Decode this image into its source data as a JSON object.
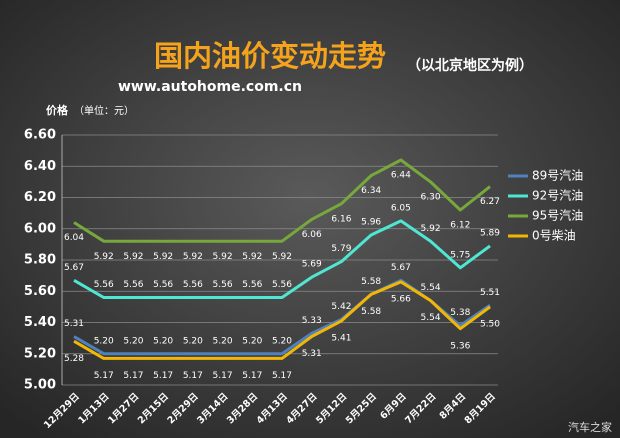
{
  "chart_data": {
    "type": "line",
    "title": "国内油价变动走势",
    "subtitle": "（以北京地区为例）",
    "source": "www.autohome.com.cn",
    "y_label": "价格",
    "y_unit": "（单位：元）",
    "watermark": "汽车之家",
    "categories": [
      "12月29日",
      "1月13日",
      "1月27日",
      "2月15日",
      "2月29日",
      "3月14日",
      "3月28日",
      "4月13日",
      "4月27日",
      "5月12日",
      "5月25日",
      "6月9日",
      "7月22日",
      "8月4日",
      "8月19日"
    ],
    "ylim": [
      5,
      6.6
    ],
    "yticks": [
      {
        "value": 5,
        "label": "5.00"
      },
      {
        "value": 5.2,
        "label": "5.20"
      },
      {
        "value": 5.4,
        "label": "5.40"
      },
      {
        "value": 5.6,
        "label": "5.60"
      },
      {
        "value": 5.8,
        "label": "5.80"
      },
      {
        "value": 6,
        "label": "6.00"
      },
      {
        "value": 6.2,
        "label": "6.20"
      },
      {
        "value": 6.4,
        "label": "6.40"
      },
      {
        "value": 6.6,
        "label": "6.60"
      }
    ],
    "grid": true,
    "legend": "right",
    "series": [
      {
        "name": "89号汽油",
        "color": "#4f81bd",
        "values": [
          5.31,
          5.2,
          5.2,
          5.2,
          5.2,
          5.2,
          5.2,
          5.2,
          5.33,
          5.42,
          5.58,
          5.67,
          5.54,
          5.38,
          5.51
        ],
        "value_labels": [
          "5.31",
          "5.20",
          "5.20",
          "5.20",
          "5.20",
          "5.20",
          "5.20",
          "5.20",
          "5.33",
          "5.42",
          "5.58",
          "5.67",
          "5.54",
          "5.38",
          "5.51"
        ]
      },
      {
        "name": "92号汽油",
        "color": "#4fe6d2",
        "values": [
          5.67,
          5.56,
          5.56,
          5.56,
          5.56,
          5.56,
          5.56,
          5.56,
          5.69,
          5.79,
          5.96,
          6.05,
          5.92,
          5.75,
          5.89
        ],
        "value_labels": [
          "5.67",
          "5.56",
          "5.56",
          "5.56",
          "5.56",
          "5.56",
          "5.56",
          "5.56",
          "5.69",
          "5.79",
          "5.96",
          "6.05",
          "5.92",
          "5.75",
          "5.89"
        ]
      },
      {
        "name": "95号汽油",
        "color": "#78a83c",
        "values": [
          6.04,
          5.92,
          5.92,
          5.92,
          5.92,
          5.92,
          5.92,
          5.92,
          6.06,
          6.16,
          6.34,
          6.44,
          6.3,
          6.12,
          6.27
        ],
        "value_labels": [
          "6.04",
          "5.92",
          "5.92",
          "5.92",
          "5.92",
          "5.92",
          "5.92",
          "5.92",
          "6.06",
          "6.16",
          "6.34",
          "6.44",
          "6.30",
          "6.12",
          "6.27"
        ]
      },
      {
        "name": "0号柴油",
        "color": "#f2b705",
        "values": [
          5.28,
          5.17,
          5.17,
          5.17,
          5.17,
          5.17,
          5.17,
          5.17,
          5.31,
          5.41,
          5.58,
          5.66,
          5.54,
          5.36,
          5.5
        ],
        "value_labels": [
          "5.28",
          "5.17",
          "5.17",
          "5.17",
          "5.17",
          "5.17",
          "5.17",
          "5.17",
          "5.31",
          "5.41",
          "5.58",
          "5.66",
          "5.54",
          "5.36",
          "5.50"
        ]
      }
    ]
  }
}
